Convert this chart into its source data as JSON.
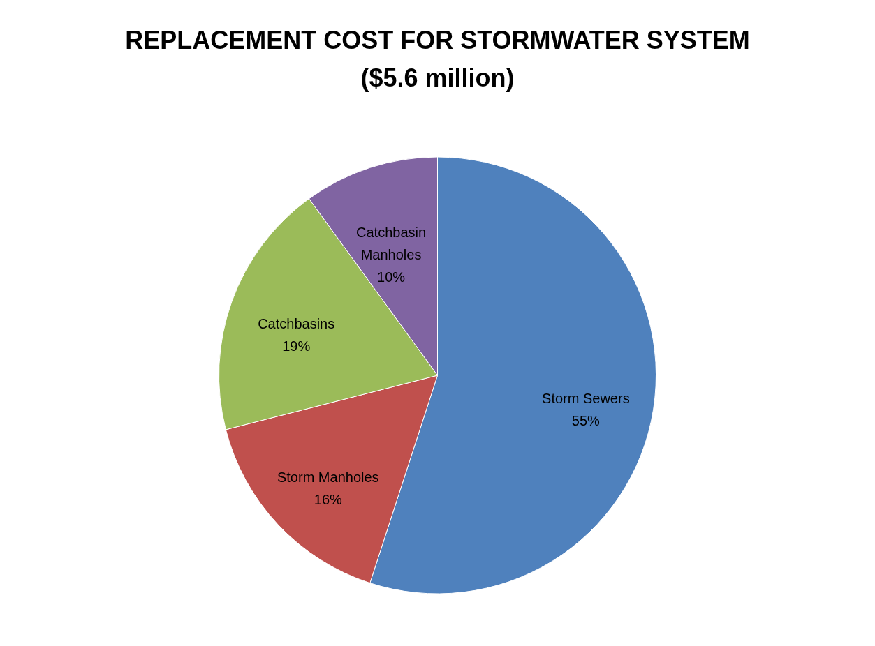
{
  "chart_data": {
    "type": "pie",
    "title": "REPLACEMENT COST FOR STORMWATER SYSTEM",
    "subtitle": "($5.6 million)",
    "categories": [
      "Storm Sewers",
      "Storm Manholes",
      "Catchbasins",
      "Catchbasin Manholes"
    ],
    "values": [
      55,
      16,
      19,
      10
    ],
    "value_labels": [
      "55%",
      "16%",
      "19%",
      "10%"
    ],
    "colors": [
      "#4f81bd",
      "#c0504d",
      "#9bbb59",
      "#8064a2"
    ],
    "legend": false
  }
}
